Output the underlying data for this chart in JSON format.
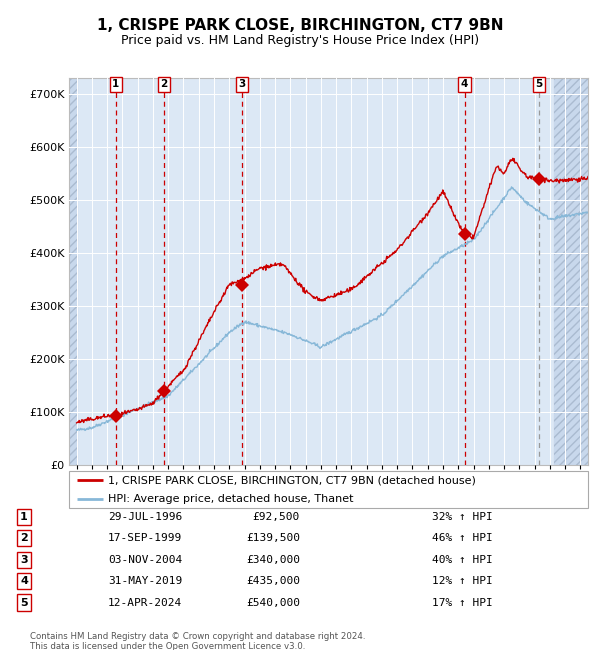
{
  "title": "1, CRISPE PARK CLOSE, BIRCHINGTON, CT7 9BN",
  "subtitle": "Price paid vs. HM Land Registry's House Price Index (HPI)",
  "ylim": [
    0,
    730000
  ],
  "xlim_start": 1993.5,
  "xlim_end": 2027.5,
  "yticks": [
    0,
    100000,
    200000,
    300000,
    400000,
    500000,
    600000,
    700000
  ],
  "ytick_labels": [
    "£0",
    "£100K",
    "£200K",
    "£300K",
    "£400K",
    "£500K",
    "£600K",
    "£700K"
  ],
  "plot_bg": "#dce8f5",
  "grid_color": "#ffffff",
  "red_line_color": "#cc0000",
  "blue_line_color": "#88b8d8",
  "sale_marker_color": "#cc0000",
  "dashed_line_color": "#cc0000",
  "hatch_bg": "#c8d8ec",
  "transactions": [
    {
      "num": 1,
      "date_year": 1996.57,
      "price": 92500,
      "label": "29-JUL-1996",
      "price_str": "£92,500",
      "hpi_str": "32% ↑ HPI"
    },
    {
      "num": 2,
      "date_year": 1999.71,
      "price": 139500,
      "label": "17-SEP-1999",
      "price_str": "£139,500",
      "hpi_str": "46% ↑ HPI"
    },
    {
      "num": 3,
      "date_year": 2004.84,
      "price": 340000,
      "label": "03-NOV-2004",
      "price_str": "£340,000",
      "hpi_str": "40% ↑ HPI"
    },
    {
      "num": 4,
      "date_year": 2019.42,
      "price": 435000,
      "label": "31-MAY-2019",
      "price_str": "£435,000",
      "hpi_str": "12% ↑ HPI"
    },
    {
      "num": 5,
      "date_year": 2024.28,
      "price": 540000,
      "label": "12-APR-2024",
      "price_str": "£540,000",
      "hpi_str": "17% ↑ HPI"
    }
  ],
  "legend_line1": "1, CRISPE PARK CLOSE, BIRCHINGTON, CT7 9BN (detached house)",
  "legend_line2": "HPI: Average price, detached house, Thanet",
  "footnote": "Contains HM Land Registry data © Crown copyright and database right 2024.\nThis data is licensed under the Open Government Licence v3.0.",
  "data_start_year": 1994.0,
  "data_end_year": 2025.3,
  "future_start": 2025.3
}
